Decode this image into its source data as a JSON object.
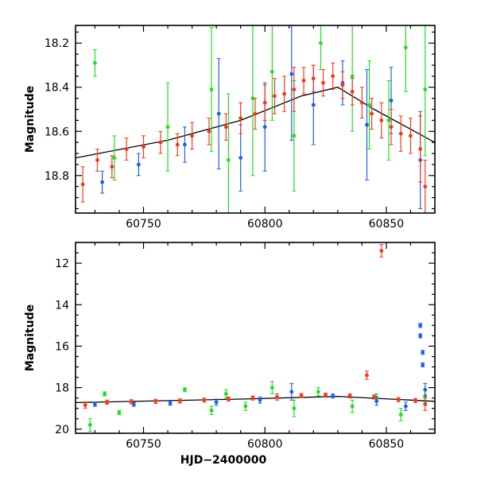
{
  "chart_data": [
    {
      "type": "scatter",
      "title": "",
      "xlabel": "",
      "ylabel": "Magnitude",
      "xlim": [
        60722,
        60870
      ],
      "ylim": [
        18.97,
        18.12
      ],
      "y_inverted": true,
      "x_ticks": [
        60750,
        60800,
        60850
      ],
      "y_ticks": [
        18.2,
        18.4,
        18.6,
        18.8
      ],
      "grid": false,
      "colors": {
        "green": "#22dd22",
        "blue": "#1f5fe6",
        "red": "#f03a1e",
        "trend": "#000000"
      },
      "trend": [
        [
          60722,
          18.72
        ],
        [
          60760,
          18.64
        ],
        [
          60790,
          18.55
        ],
        [
          60815,
          18.44
        ],
        [
          60830,
          18.4
        ],
        [
          60845,
          18.5
        ],
        [
          60870,
          18.65
        ]
      ],
      "series": [
        {
          "color_key": "green",
          "points": [
            [
              60730,
              18.29,
              0.06
            ],
            [
              60738,
              18.72,
              0.1
            ],
            [
              60760,
              18.58,
              0.2
            ],
            [
              60778,
              18.41,
              0.28
            ],
            [
              60785,
              18.73,
              0.3
            ],
            [
              60795,
              18.45,
              0.35
            ],
            [
              60803,
              18.33,
              0.22
            ],
            [
              60812,
              18.62,
              0.25
            ],
            [
              60823,
              18.2,
              0.12
            ],
            [
              60836,
              18.35,
              0.25
            ],
            [
              60843,
              18.48,
              0.2
            ],
            [
              60851,
              18.55,
              0.18
            ],
            [
              60858,
              18.22,
              0.2
            ],
            [
              60866,
              18.41,
              0.3
            ]
          ]
        },
        {
          "color_key": "blue",
          "points": [
            [
              60733,
              18.83,
              0.05
            ],
            [
              60748,
              18.75,
              0.05
            ],
            [
              60767,
              18.66,
              0.08
            ],
            [
              60781,
              18.52,
              0.25
            ],
            [
              60790,
              18.72,
              0.15
            ],
            [
              60800,
              18.58,
              0.2
            ],
            [
              60811,
              18.34,
              0.3
            ],
            [
              60820,
              18.48,
              0.18
            ],
            [
              60832,
              18.38,
              0.1
            ],
            [
              60842,
              18.57,
              0.25
            ],
            [
              60852,
              18.46,
              0.15
            ],
            [
              60864,
              18.73,
              0.22
            ]
          ]
        },
        {
          "color_key": "red",
          "points": [
            [
              60725,
              18.84,
              0.08
            ],
            [
              60731,
              18.73,
              0.05
            ],
            [
              60737,
              18.76,
              0.05
            ],
            [
              60743,
              18.68,
              0.05
            ],
            [
              60750,
              18.67,
              0.05
            ],
            [
              60757,
              18.65,
              0.05
            ],
            [
              60764,
              18.66,
              0.05
            ],
            [
              60770,
              18.62,
              0.06
            ],
            [
              60777,
              18.6,
              0.06
            ],
            [
              60784,
              18.58,
              0.06
            ],
            [
              60790,
              18.54,
              0.07
            ],
            [
              60796,
              18.52,
              0.07
            ],
            [
              60800,
              18.47,
              0.08
            ],
            [
              60804,
              18.44,
              0.08
            ],
            [
              60808,
              18.43,
              0.08
            ],
            [
              60812,
              18.41,
              0.1
            ],
            [
              60816,
              18.37,
              0.06
            ],
            [
              60820,
              18.36,
              0.06
            ],
            [
              60824,
              18.38,
              0.06
            ],
            [
              60828,
              18.35,
              0.06
            ],
            [
              60832,
              18.39,
              0.06
            ],
            [
              60836,
              18.42,
              0.06
            ],
            [
              60840,
              18.47,
              0.07
            ],
            [
              60844,
              18.52,
              0.07
            ],
            [
              60848,
              18.55,
              0.08
            ],
            [
              60852,
              18.58,
              0.08
            ],
            [
              60856,
              18.61,
              0.08
            ],
            [
              60860,
              18.62,
              0.08
            ],
            [
              60864,
              18.68,
              0.15
            ],
            [
              60866,
              18.85,
              0.12
            ]
          ]
        }
      ]
    },
    {
      "type": "scatter",
      "title": "",
      "xlabel": "HJD−2400000",
      "ylabel": "Magnitude",
      "xlim": [
        60722,
        60870
      ],
      "ylim": [
        20.2,
        11.0
      ],
      "y_inverted": true,
      "x_ticks": [
        60750,
        60800,
        60850
      ],
      "y_ticks": [
        12,
        14,
        16,
        18,
        20
      ],
      "grid": false,
      "colors": {
        "green": "#22dd22",
        "blue": "#1f5fe6",
        "red": "#f03a1e",
        "trend": "#000000"
      },
      "trend": [
        [
          60722,
          18.72
        ],
        [
          60790,
          18.55
        ],
        [
          60830,
          18.42
        ],
        [
          60870,
          18.66
        ]
      ],
      "series": [
        {
          "color_key": "green",
          "points": [
            [
              60728,
              19.8,
              0.3
            ],
            [
              60734,
              18.3,
              0.1
            ],
            [
              60740,
              19.2,
              0.1
            ],
            [
              60767,
              18.1,
              0.1
            ],
            [
              60778,
              19.1,
              0.2
            ],
            [
              60784,
              18.3,
              0.2
            ],
            [
              60792,
              18.9,
              0.2
            ],
            [
              60803,
              18.0,
              0.3
            ],
            [
              60812,
              19.0,
              0.4
            ],
            [
              60822,
              18.2,
              0.2
            ],
            [
              60836,
              18.9,
              0.3
            ],
            [
              60846,
              18.5,
              0.2
            ],
            [
              60856,
              19.3,
              0.3
            ],
            [
              60866,
              18.4,
              0.3
            ]
          ]
        },
        {
          "color_key": "blue",
          "points": [
            [
              60730,
              18.8,
              0.1
            ],
            [
              60746,
              18.8,
              0.1
            ],
            [
              60761,
              18.75,
              0.1
            ],
            [
              60780,
              18.7,
              0.15
            ],
            [
              60798,
              18.6,
              0.15
            ],
            [
              60811,
              18.2,
              0.4
            ],
            [
              60828,
              18.4,
              0.1
            ],
            [
              60846,
              18.65,
              0.2
            ],
            [
              60858,
              18.9,
              0.2
            ],
            [
              60864,
              15.0,
              0.1
            ],
            [
              60864,
              15.5,
              0.1
            ],
            [
              60865,
              16.3,
              0.1
            ],
            [
              60865,
              16.9,
              0.1
            ],
            [
              60866,
              18.1,
              0.3
            ]
          ]
        },
        {
          "color_key": "red",
          "points": [
            [
              60726,
              18.84,
              0.15
            ],
            [
              60735,
              18.7,
              0.1
            ],
            [
              60745,
              18.68,
              0.1
            ],
            [
              60755,
              18.66,
              0.1
            ],
            [
              60765,
              18.64,
              0.1
            ],
            [
              60775,
              18.6,
              0.1
            ],
            [
              60785,
              18.55,
              0.1
            ],
            [
              60795,
              18.5,
              0.1
            ],
            [
              60805,
              18.45,
              0.15
            ],
            [
              60815,
              18.38,
              0.1
            ],
            [
              60825,
              18.36,
              0.1
            ],
            [
              60835,
              18.4,
              0.1
            ],
            [
              60842,
              17.4,
              0.2
            ],
            [
              60845,
              18.45,
              0.1
            ],
            [
              60848,
              11.4,
              0.3
            ],
            [
              60855,
              18.58,
              0.1
            ],
            [
              60862,
              18.62,
              0.1
            ],
            [
              60866,
              18.8,
              0.3
            ]
          ]
        }
      ]
    }
  ]
}
